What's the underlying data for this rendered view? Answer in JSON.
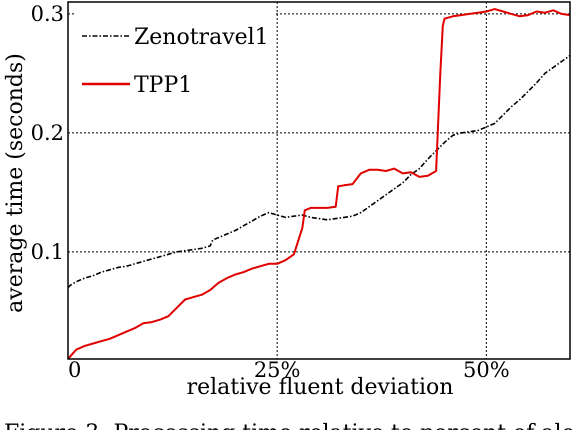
{
  "chart_data": {
    "type": "line",
    "xlabel": "relative fluent deviation",
    "ylabel": "average time (seconds)",
    "xlim": [
      0,
      60
    ],
    "ylim": [
      0.01,
      0.31
    ],
    "xticks": [
      {
        "value": 0,
        "label": "0"
      },
      {
        "value": 25,
        "label": "25%"
      },
      {
        "value": 50,
        "label": "50%"
      }
    ],
    "yticks": [
      {
        "value": 0.1,
        "label": "0.1"
      },
      {
        "value": 0.2,
        "label": "0.2"
      },
      {
        "value": 0.3,
        "label": "0.3"
      }
    ],
    "grid": true,
    "legend_position": "top-left",
    "series": [
      {
        "name": "Zenotravel1",
        "color": "#000000",
        "style": "dash-dot",
        "points": [
          [
            0,
            0.07
          ],
          [
            0.3,
            0.072
          ],
          [
            1,
            0.075
          ],
          [
            2,
            0.078
          ],
          [
            3,
            0.08
          ],
          [
            4,
            0.083
          ],
          [
            5,
            0.085
          ],
          [
            6,
            0.087
          ],
          [
            7,
            0.088
          ],
          [
            8,
            0.09
          ],
          [
            9,
            0.092
          ],
          [
            10,
            0.094
          ],
          [
            11,
            0.096
          ],
          [
            12,
            0.098
          ],
          [
            13,
            0.1
          ],
          [
            14,
            0.101
          ],
          [
            15,
            0.102
          ],
          [
            16,
            0.103
          ],
          [
            17,
            0.105
          ],
          [
            17.3,
            0.11
          ],
          [
            18,
            0.112
          ],
          [
            19,
            0.115
          ],
          [
            20,
            0.118
          ],
          [
            21,
            0.122
          ],
          [
            22,
            0.126
          ],
          [
            23,
            0.13
          ],
          [
            24,
            0.133
          ],
          [
            25,
            0.131
          ],
          [
            26,
            0.129
          ],
          [
            27,
            0.13
          ],
          [
            28,
            0.131
          ],
          [
            29,
            0.129
          ],
          [
            30,
            0.128
          ],
          [
            31,
            0.127
          ],
          [
            32,
            0.128
          ],
          [
            33,
            0.129
          ],
          [
            34,
            0.13
          ],
          [
            35,
            0.133
          ],
          [
            36,
            0.138
          ],
          [
            37,
            0.143
          ],
          [
            38,
            0.148
          ],
          [
            39,
            0.153
          ],
          [
            40,
            0.158
          ],
          [
            41,
            0.165
          ],
          [
            42,
            0.17
          ],
          [
            43,
            0.178
          ],
          [
            44,
            0.185
          ],
          [
            45,
            0.192
          ],
          [
            46,
            0.198
          ],
          [
            47,
            0.2
          ],
          [
            48,
            0.201
          ],
          [
            49,
            0.202
          ],
          [
            50,
            0.205
          ],
          [
            51,
            0.208
          ],
          [
            52,
            0.215
          ],
          [
            53,
            0.222
          ],
          [
            54,
            0.228
          ],
          [
            55,
            0.235
          ],
          [
            56,
            0.242
          ],
          [
            57,
            0.25
          ],
          [
            58,
            0.255
          ],
          [
            59,
            0.26
          ],
          [
            60,
            0.265
          ]
        ]
      },
      {
        "name": "TPP1",
        "color": "#e00000",
        "style": "solid",
        "points": [
          [
            0,
            0.01
          ],
          [
            0.5,
            0.014
          ],
          [
            1,
            0.018
          ],
          [
            2,
            0.021
          ],
          [
            3,
            0.023
          ],
          [
            4,
            0.025
          ],
          [
            5,
            0.027
          ],
          [
            6,
            0.03
          ],
          [
            7,
            0.033
          ],
          [
            8,
            0.036
          ],
          [
            9,
            0.04
          ],
          [
            10,
            0.041
          ],
          [
            11,
            0.043
          ],
          [
            12,
            0.046
          ],
          [
            13,
            0.053
          ],
          [
            14,
            0.06
          ],
          [
            15,
            0.062
          ],
          [
            16,
            0.064
          ],
          [
            17,
            0.068
          ],
          [
            18,
            0.074
          ],
          [
            19,
            0.078
          ],
          [
            20,
            0.081
          ],
          [
            21,
            0.083
          ],
          [
            22,
            0.086
          ],
          [
            23,
            0.088
          ],
          [
            24,
            0.09
          ],
          [
            25,
            0.09
          ],
          [
            26,
            0.093
          ],
          [
            27,
            0.098
          ],
          [
            28,
            0.12
          ],
          [
            28.3,
            0.135
          ],
          [
            29,
            0.137
          ],
          [
            30,
            0.137
          ],
          [
            31,
            0.137
          ],
          [
            32,
            0.138
          ],
          [
            32.3,
            0.155
          ],
          [
            33,
            0.156
          ],
          [
            34,
            0.157
          ],
          [
            35,
            0.166
          ],
          [
            36,
            0.169
          ],
          [
            37,
            0.169
          ],
          [
            38,
            0.168
          ],
          [
            39,
            0.17
          ],
          [
            40,
            0.166
          ],
          [
            41,
            0.167
          ],
          [
            42,
            0.163
          ],
          [
            43,
            0.164
          ],
          [
            44,
            0.168
          ],
          [
            44.5,
            0.25
          ],
          [
            44.8,
            0.29
          ],
          [
            45,
            0.296
          ],
          [
            46,
            0.298
          ],
          [
            47,
            0.299
          ],
          [
            48,
            0.3
          ],
          [
            49,
            0.301
          ],
          [
            50,
            0.302
          ],
          [
            51,
            0.304
          ],
          [
            52,
            0.302
          ],
          [
            53,
            0.3
          ],
          [
            54,
            0.298
          ],
          [
            55,
            0.299
          ],
          [
            56,
            0.302
          ],
          [
            57,
            0.301
          ],
          [
            58,
            0.303
          ],
          [
            59,
            0.3
          ],
          [
            60,
            0.299
          ]
        ]
      }
    ]
  },
  "caption": "Figure 3: Processing time relative to percent of alo"
}
